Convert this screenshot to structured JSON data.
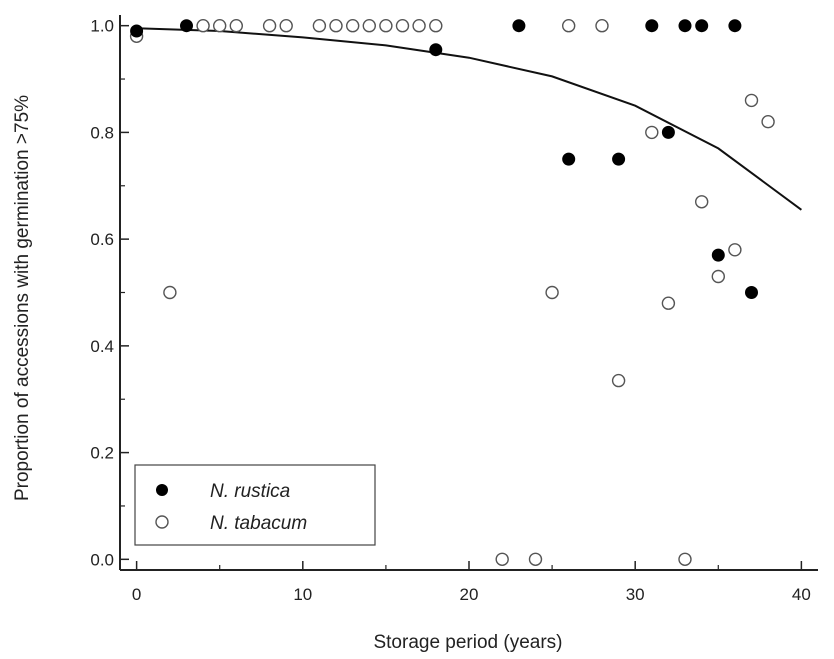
{
  "chart_data": {
    "type": "scatter",
    "title": "",
    "xlabel": "Storage period (years)",
    "ylabel": "Proportion of accessions with germination >75%",
    "xlim": [
      -1,
      41
    ],
    "ylim": [
      -0.02,
      1.02
    ],
    "x_ticks": [
      0,
      10,
      20,
      30,
      40
    ],
    "y_ticks": [
      0.0,
      0.2,
      0.4,
      0.6,
      0.8,
      1.0
    ],
    "x_tick_labels": [
      "0",
      "10",
      "20",
      "30",
      "40"
    ],
    "y_tick_labels": [
      "0.0",
      "0.2",
      "0.4",
      "0.6",
      "0.8",
      "1.0"
    ],
    "grid": false,
    "legend_position": "bottom-left",
    "series": [
      {
        "name": "N. rustica",
        "marker": "filled-circle",
        "color": "#000000",
        "points": [
          [
            0,
            0.99
          ],
          [
            3,
            1.0
          ],
          [
            18,
            0.955
          ],
          [
            23,
            1.0
          ],
          [
            26,
            0.75
          ],
          [
            29,
            0.75
          ],
          [
            31,
            1.0
          ],
          [
            32,
            0.8
          ],
          [
            33,
            1.0
          ],
          [
            34,
            1.0
          ],
          [
            35,
            0.57
          ],
          [
            36,
            1.0
          ],
          [
            37,
            0.5
          ]
        ]
      },
      {
        "name": "N. tabacum",
        "marker": "open-circle",
        "color": "#555555",
        "points": [
          [
            0,
            0.98
          ],
          [
            2,
            0.5
          ],
          [
            4,
            1.0
          ],
          [
            5,
            1.0
          ],
          [
            6,
            1.0
          ],
          [
            8,
            1.0
          ],
          [
            9,
            1.0
          ],
          [
            11,
            1.0
          ],
          [
            12,
            1.0
          ],
          [
            13,
            1.0
          ],
          [
            14,
            1.0
          ],
          [
            15,
            1.0
          ],
          [
            16,
            1.0
          ],
          [
            17,
            1.0
          ],
          [
            18,
            1.0
          ],
          [
            22,
            0.0
          ],
          [
            24,
            0.0
          ],
          [
            25,
            0.5
          ],
          [
            26,
            1.0
          ],
          [
            28,
            1.0
          ],
          [
            29,
            0.335
          ],
          [
            31,
            0.8
          ],
          [
            32,
            0.48
          ],
          [
            33,
            0.0
          ],
          [
            34,
            0.67
          ],
          [
            35,
            0.53
          ],
          [
            36,
            0.58
          ],
          [
            37,
            0.86
          ],
          [
            38,
            0.82
          ]
        ]
      }
    ],
    "fit_curve": {
      "type": "line",
      "color": "#111111",
      "points": [
        [
          0,
          0.995
        ],
        [
          5,
          0.99
        ],
        [
          10,
          0.978
        ],
        [
          15,
          0.963
        ],
        [
          20,
          0.94
        ],
        [
          25,
          0.905
        ],
        [
          30,
          0.85
        ],
        [
          35,
          0.77
        ],
        [
          40,
          0.655
        ]
      ]
    }
  }
}
